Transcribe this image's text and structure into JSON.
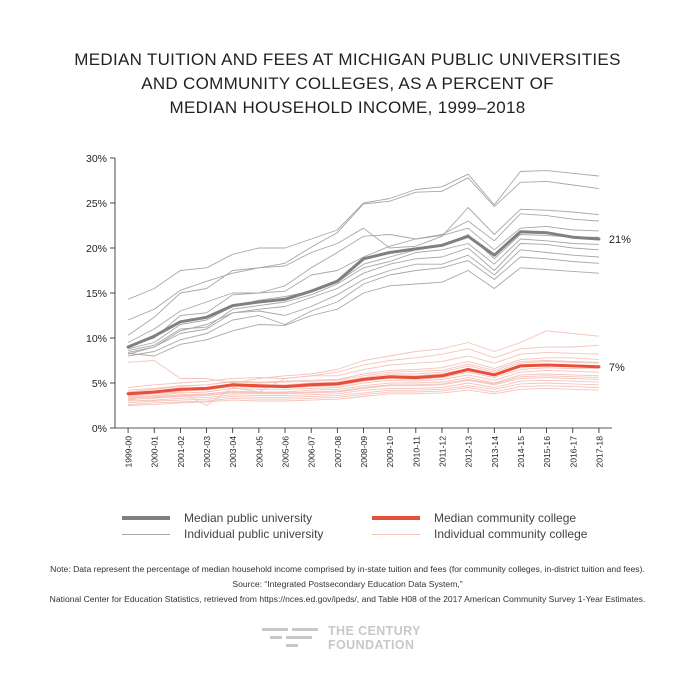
{
  "title_lines": [
    "MEDIAN TUITION AND FEES AT MICHIGAN PUBLIC UNIVERSITIES",
    "AND COMMUNITY COLLEGES, AS A PERCENT OF",
    "MEDIAN HOUSEHOLD INCOME, 1999–2018"
  ],
  "chart_data": {
    "type": "line",
    "x": [
      "1999-00",
      "2000-01",
      "2001-02",
      "2002-03",
      "2003-04",
      "2004-05",
      "2005-06",
      "2006-07",
      "2007-08",
      "2008-09",
      "2009-10",
      "2010-11",
      "2011-12",
      "2012-13",
      "2013-14",
      "2014-15",
      "2015-16",
      "2016-17",
      "2017-18"
    ],
    "ylim": [
      0,
      30
    ],
    "yticks": [
      0,
      5,
      10,
      15,
      20,
      25,
      30
    ],
    "ytick_labels": [
      "0%",
      "5%",
      "10%",
      "15%",
      "20%",
      "25%",
      "30%"
    ],
    "grid": false,
    "series": [
      {
        "name": "Median public university",
        "role": "median",
        "color": "#808080",
        "values": [
          9.0,
          10.2,
          11.8,
          12.3,
          13.6,
          14.0,
          14.3,
          15.2,
          16.3,
          18.8,
          19.5,
          19.9,
          20.3,
          21.3,
          19.2,
          21.8,
          21.7,
          21.2,
          21.0
        ],
        "end_label": "21%"
      },
      {
        "name": "Median community college",
        "role": "median",
        "color": "#e84e3a",
        "values": [
          3.8,
          4.0,
          4.3,
          4.4,
          4.8,
          4.7,
          4.6,
          4.8,
          4.9,
          5.4,
          5.7,
          5.6,
          5.8,
          6.5,
          5.9,
          6.9,
          7.0,
          6.9,
          6.8
        ],
        "end_label": "7%"
      },
      {
        "name": "Individual public university",
        "role": "individual",
        "color": "#a8a8a8",
        "lines": [
          [
            14.3,
            15.5,
            17.5,
            17.8,
            19.3,
            20.0,
            20.0,
            21.0,
            22.0,
            25.0,
            25.5,
            26.5,
            26.8,
            28.2,
            24.8,
            28.5,
            28.6,
            28.3,
            28.0
          ],
          [
            10.3,
            12.3,
            15.0,
            15.5,
            17.5,
            17.8,
            18.3,
            20.1,
            21.7,
            24.9,
            25.2,
            26.2,
            26.3,
            27.8,
            24.6,
            27.3,
            27.4,
            27.0,
            26.6
          ],
          [
            12.0,
            13.2,
            15.3,
            16.3,
            17.2,
            17.8,
            18.0,
            19.5,
            20.5,
            22.2,
            20.0,
            20.2,
            21.3,
            24.5,
            21.5,
            24.3,
            24.2,
            24.0,
            23.7
          ],
          [
            9.5,
            11.0,
            13.0,
            14.0,
            15.0,
            15.0,
            15.8,
            17.8,
            19.5,
            21.3,
            21.5,
            21.0,
            21.5,
            23.0,
            20.8,
            23.8,
            23.6,
            23.2,
            23.0
          ],
          [
            9.0,
            10.0,
            12.5,
            12.8,
            14.8,
            15.0,
            15.2,
            17.0,
            17.5,
            19.0,
            20.2,
            21.0,
            21.4,
            22.2,
            19.8,
            22.2,
            22.4,
            22.0,
            21.9
          ],
          [
            8.8,
            9.5,
            11.5,
            12.0,
            13.5,
            14.2,
            14.6,
            15.2,
            16.2,
            18.2,
            19.0,
            19.8,
            20.2,
            21.5,
            18.8,
            21.5,
            21.4,
            21.2,
            21.2
          ],
          [
            8.6,
            9.2,
            11.0,
            11.2,
            13.2,
            13.6,
            14.0,
            14.8,
            16.0,
            17.8,
            18.5,
            19.5,
            19.8,
            20.5,
            18.2,
            21.0,
            20.8,
            20.5,
            20.4
          ],
          [
            8.4,
            9.0,
            10.8,
            11.5,
            12.8,
            13.2,
            13.5,
            14.5,
            15.5,
            17.2,
            18.2,
            18.8,
            19.0,
            20.0,
            17.5,
            20.5,
            20.4,
            20.0,
            19.8
          ],
          [
            8.2,
            9.0,
            10.5,
            11.0,
            12.8,
            13.0,
            12.5,
            13.5,
            14.8,
            16.5,
            17.5,
            18.2,
            18.2,
            19.2,
            17.0,
            19.8,
            19.5,
            19.2,
            19.0
          ],
          [
            8.0,
            8.5,
            9.8,
            10.5,
            12.0,
            12.5,
            11.5,
            13.0,
            14.0,
            16.0,
            17.0,
            17.5,
            17.8,
            18.6,
            16.5,
            19.0,
            18.8,
            18.5,
            18.3
          ],
          [
            8.3,
            8.0,
            9.3,
            9.8,
            10.8,
            11.5,
            11.4,
            12.5,
            13.2,
            15.0,
            15.8,
            16.0,
            16.2,
            17.5,
            15.5,
            17.8,
            17.6,
            17.4,
            17.2
          ]
        ]
      },
      {
        "name": "Individual community college",
        "role": "individual",
        "color": "#f6c3bb",
        "lines": [
          [
            7.3,
            7.5,
            5.5,
            5.5,
            5.0,
            5.5,
            5.8,
            6.0,
            6.5,
            7.5,
            8.0,
            8.5,
            8.8,
            9.5,
            8.5,
            9.5,
            10.8,
            10.5,
            10.2
          ],
          [
            3.5,
            3.8,
            4.0,
            2.5,
            4.5,
            4.0,
            5.5,
            5.8,
            6.2,
            7.0,
            7.5,
            7.8,
            8.2,
            8.8,
            7.8,
            8.8,
            9.0,
            9.0,
            9.2
          ],
          [
            4.5,
            4.8,
            5.0,
            5.2,
            5.5,
            5.6,
            5.5,
            5.8,
            5.8,
            6.5,
            7.0,
            7.2,
            7.4,
            8.0,
            7.2,
            8.2,
            8.4,
            8.3,
            8.2
          ],
          [
            4.0,
            4.3,
            4.6,
            4.8,
            5.2,
            5.1,
            5.2,
            5.3,
            5.4,
            6.0,
            6.4,
            6.5,
            6.7,
            7.4,
            6.6,
            7.6,
            7.8,
            7.8,
            7.6
          ],
          [
            3.8,
            4.0,
            4.4,
            4.5,
            4.9,
            4.8,
            4.8,
            5.0,
            5.1,
            5.6,
            6.0,
            6.0,
            6.2,
            6.9,
            6.2,
            7.2,
            7.4,
            7.3,
            7.2
          ],
          [
            3.6,
            3.9,
            4.1,
            4.2,
            4.6,
            4.5,
            4.5,
            4.6,
            4.7,
            5.2,
            5.5,
            5.4,
            5.6,
            6.2,
            5.6,
            6.5,
            6.7,
            6.6,
            6.6
          ],
          [
            3.4,
            3.6,
            3.9,
            4.0,
            4.4,
            4.3,
            4.3,
            4.4,
            4.5,
            5.0,
            5.3,
            5.2,
            5.4,
            5.9,
            5.3,
            6.2,
            6.4,
            6.3,
            6.2
          ],
          [
            3.3,
            3.5,
            3.7,
            3.8,
            4.1,
            4.0,
            4.0,
            4.2,
            4.3,
            4.7,
            5.0,
            5.0,
            5.1,
            5.6,
            5.0,
            5.9,
            6.0,
            5.9,
            5.8
          ],
          [
            3.2,
            3.3,
            3.5,
            3.6,
            3.9,
            3.8,
            3.8,
            3.9,
            4.0,
            4.4,
            4.7,
            4.7,
            4.8,
            5.3,
            4.8,
            5.5,
            5.6,
            5.5,
            5.4
          ],
          [
            3.0,
            3.1,
            3.3,
            3.4,
            3.7,
            3.6,
            3.6,
            3.7,
            3.8,
            4.2,
            4.4,
            4.4,
            4.5,
            5.0,
            4.5,
            5.2,
            5.3,
            5.2,
            5.1
          ],
          [
            2.8,
            3.0,
            3.1,
            3.2,
            3.5,
            3.4,
            3.4,
            3.5,
            3.6,
            3.9,
            4.2,
            4.2,
            4.3,
            4.7,
            4.3,
            4.9,
            5.0,
            4.9,
            4.8
          ],
          [
            2.6,
            2.8,
            2.9,
            3.0,
            3.3,
            3.2,
            3.2,
            3.3,
            3.4,
            3.7,
            4.0,
            4.0,
            4.1,
            4.5,
            4.0,
            4.6,
            4.7,
            4.6,
            4.5
          ],
          [
            2.5,
            2.6,
            2.8,
            2.9,
            3.1,
            3.0,
            3.0,
            3.1,
            3.2,
            3.5,
            3.8,
            3.8,
            3.9,
            4.2,
            3.8,
            4.3,
            4.4,
            4.3,
            4.2
          ],
          [
            4.2,
            4.4,
            4.7,
            4.8,
            5.1,
            5.0,
            5.1,
            5.2,
            5.3,
            5.8,
            6.2,
            6.3,
            6.4,
            7.1,
            6.4,
            7.4,
            7.5,
            7.4,
            7.3
          ],
          [
            3.9,
            4.1,
            4.3,
            4.5,
            4.8,
            4.7,
            4.7,
            4.9,
            5.0,
            5.4,
            5.8,
            5.8,
            6.0,
            6.6,
            6.0,
            6.9,
            7.0,
            6.9,
            6.9
          ],
          [
            3.1,
            3.4,
            3.6,
            3.7,
            4.0,
            3.9,
            3.9,
            4.0,
            4.1,
            4.5,
            4.8,
            4.8,
            4.9,
            5.4,
            4.9,
            5.7,
            5.8,
            5.7,
            5.6
          ]
        ]
      }
    ]
  },
  "legend": {
    "median_university": "Median public university",
    "individual_university": "Individual public university",
    "median_cc": "Median community college",
    "individual_cc": "Individual community college"
  },
  "note": {
    "line1": "Note: Data represent the percentage of median household income comprised by in-state tuition and fees (for community colleges, in-district tuition and fees).",
    "line2": "Source: “Integrated Postsecondary Education Data System,”",
    "line3": "National Center for Education Statistics, retrieved from https://nces.ed.gov/ipeds/, and Table H08 of the 2017 American Community Survey 1-Year Estimates."
  },
  "logo": {
    "line1": "THE CENTURY",
    "line2": "FOUNDATION",
    "color": "#c8c8c8"
  }
}
